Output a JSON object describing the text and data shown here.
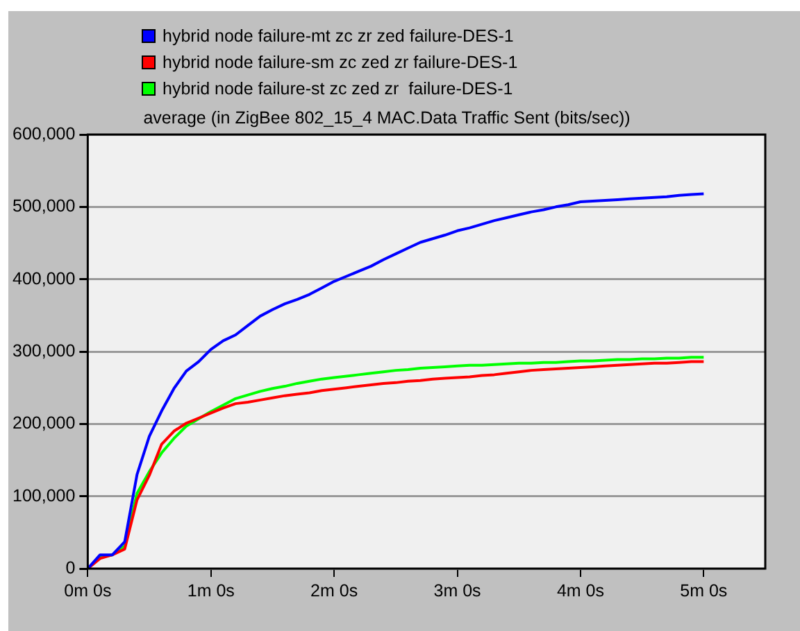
{
  "chart_data": {
    "type": "line",
    "title": "average (in ZigBee 802_15_4 MAC.Data Traffic Sent (bits/sec))",
    "categories": [
      "0m 0s",
      null,
      null,
      null,
      null,
      null,
      null,
      null,
      null,
      null,
      "1m 0s",
      null,
      null,
      null,
      null,
      null,
      null,
      null,
      null,
      null,
      "2m 0s",
      null,
      null,
      null,
      null,
      null,
      null,
      null,
      null,
      null,
      "3m 0s",
      null,
      null,
      null,
      null,
      null,
      null,
      null,
      null,
      null,
      "4m 0s",
      null,
      null,
      null,
      null,
      null,
      null,
      null,
      null,
      null,
      "5m 0s",
      null,
      null,
      null,
      null,
      null
    ],
    "ylim": [
      0,
      600000
    ],
    "yticks": [
      {
        "value": 0,
        "label": "0"
      },
      {
        "value": 100000,
        "label": "100,000"
      },
      {
        "value": 200000,
        "label": "200,000"
      },
      {
        "value": 300000,
        "label": "300,000"
      },
      {
        "value": 400000,
        "label": "400,000"
      },
      {
        "value": 500000,
        "label": "500,000"
      },
      {
        "value": 600000,
        "label": "600,000"
      }
    ],
    "grid": "y",
    "legend": "top",
    "marker": "none",
    "line_style": "solid",
    "series": [
      {
        "name": "hybrid node failure-mt zc zr zed failure-DES-1",
        "color": "#0000ff",
        "values": [
          0,
          19000,
          19000,
          37000,
          130000,
          183000,
          218000,
          249000,
          273000,
          286000,
          303000,
          315000,
          323000,
          336000,
          349000,
          358000,
          366000,
          372000,
          379000,
          388000,
          397000,
          404000,
          411000,
          418000,
          427000,
          435000,
          443000,
          451000,
          456000,
          461000,
          467000,
          471000,
          476000,
          481000,
          485000,
          489000,
          493000,
          496000,
          500000,
          503000,
          507000,
          508000,
          509000,
          510000,
          511000,
          512000,
          513000,
          514000,
          516000,
          517000,
          518000,
          null,
          null,
          null,
          null,
          null
        ]
      },
      {
        "name": "hybrid node failure-sm zc zed zr failure-DES-1",
        "color": "#ff0000",
        "values": [
          0,
          14000,
          19000,
          27000,
          95000,
          129000,
          172000,
          190000,
          201000,
          208000,
          215000,
          222000,
          228000,
          230000,
          233000,
          236000,
          239000,
          241000,
          243000,
          246000,
          248000,
          250000,
          252000,
          254000,
          256000,
          257000,
          259000,
          260000,
          262000,
          263000,
          264000,
          265000,
          267000,
          268000,
          270000,
          272000,
          274000,
          275000,
          276000,
          277000,
          278000,
          279000,
          280000,
          281000,
          282000,
          283000,
          284000,
          284000,
          285000,
          286000,
          286000,
          null,
          null,
          null,
          null,
          null
        ]
      },
      {
        "name": "hybrid node failure-st zc zed zr  failure-DES-1",
        "color": "#00ff00",
        "values": [
          0,
          16000,
          19000,
          31000,
          104000,
          134000,
          160000,
          180000,
          197000,
          207000,
          217000,
          226000,
          235000,
          240000,
          245000,
          249000,
          252000,
          256000,
          259000,
          262000,
          264000,
          266000,
          268000,
          270000,
          272000,
          274000,
          275000,
          277000,
          278000,
          279000,
          280000,
          281000,
          281000,
          282000,
          283000,
          284000,
          284000,
          285000,
          285000,
          286000,
          287000,
          287000,
          288000,
          289000,
          289000,
          290000,
          290000,
          291000,
          291000,
          292000,
          292000,
          null,
          null,
          null,
          null,
          null
        ]
      }
    ]
  }
}
